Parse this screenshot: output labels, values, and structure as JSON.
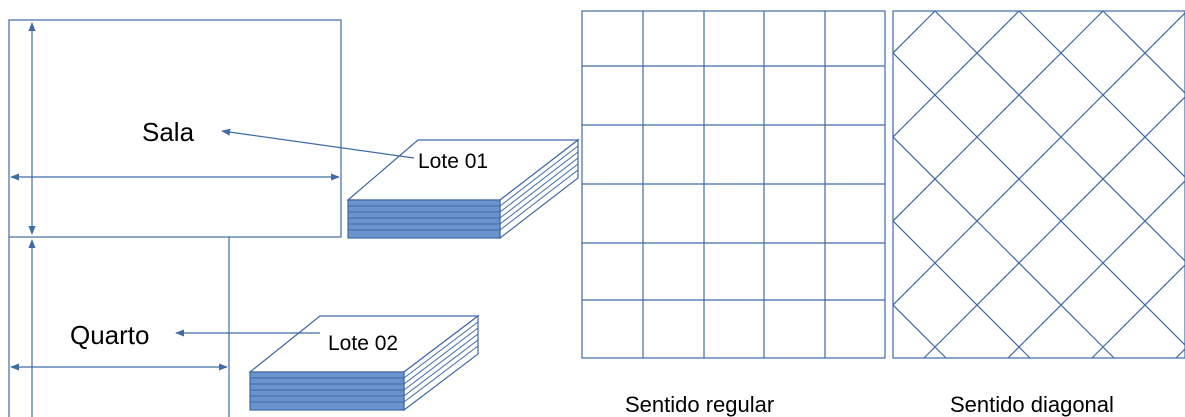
{
  "rooms": {
    "sala_label": "Sala",
    "quarto_label": "Quarto"
  },
  "lots": {
    "lote1_label": "Lote 01",
    "lote2_label": "Lote 02"
  },
  "patterns": {
    "regular_caption": "Sentido regular",
    "diagonal_caption": "Sentido diagonal"
  },
  "colors": {
    "line": "#3f6aa6",
    "tile_fill": "#6b94cf",
    "text": "#000000"
  }
}
